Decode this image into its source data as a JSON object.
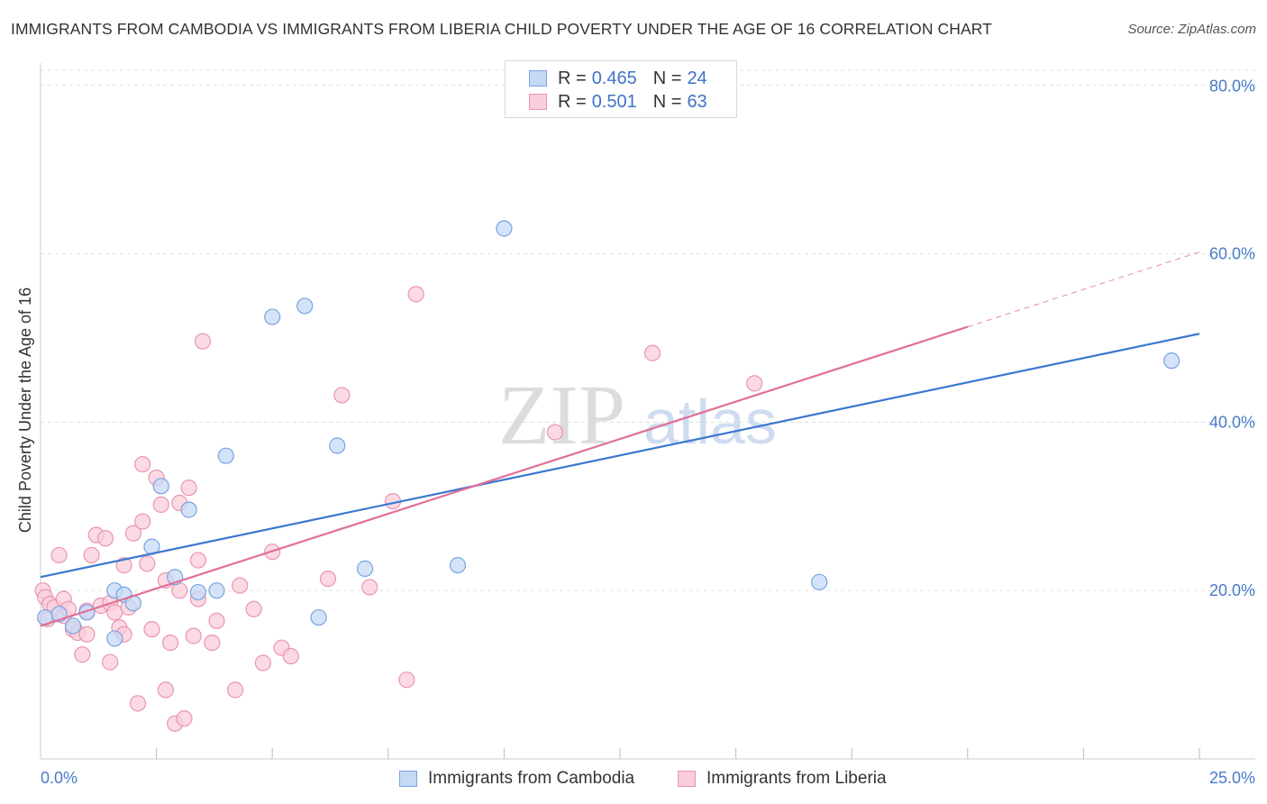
{
  "title": "IMMIGRANTS FROM CAMBODIA VS IMMIGRANTS FROM LIBERIA CHILD POVERTY UNDER THE AGE OF 16 CORRELATION CHART",
  "source": "Source: ZipAtlas.com",
  "watermark": {
    "zip": "ZIP",
    "atlas": "atlas"
  },
  "legend": {
    "cambodia": {
      "r_label": "R =",
      "r_value": "0.465",
      "n_label": "N =",
      "n_value": "24"
    },
    "liberia": {
      "r_label": "R =",
      "r_value": "0.501",
      "n_label": "N =",
      "n_value": "63"
    }
  },
  "colors": {
    "cambodia_fill": "#c5d9f5",
    "cambodia_stroke": "#7aa3e0",
    "cambodia_line": "#3a78d0",
    "liberia_fill": "#f9cdda",
    "liberia_stroke": "#e995b0",
    "liberia_line": "#e07098",
    "tick_text": "#4a7bc8",
    "grid": "#dddddd"
  },
  "chart_data": {
    "type": "scatter",
    "title": "IMMIGRANTS FROM CAMBODIA VS IMMIGRANTS FROM LIBERIA CHILD POVERTY UNDER THE AGE OF 16 CORRELATION CHART",
    "xlabel": "",
    "ylabel": "Child Poverty Under the Age of 16",
    "xlim": [
      0,
      25
    ],
    "ylim": [
      0,
      82
    ],
    "y_ticks": [
      20,
      40,
      60,
      80
    ],
    "y_tick_labels": [
      "20.0%",
      "40.0%",
      "60.0%",
      "80.0%"
    ],
    "x_tick_labels": {
      "min": "0.0%",
      "max": "25.0%"
    },
    "series": [
      {
        "name": "Immigrants from Cambodia",
        "trend": {
          "x0": 0,
          "y0": 21.6,
          "x1": 25,
          "y1": 50.5,
          "dashed_from": null
        },
        "points": [
          [
            0.1,
            16.8
          ],
          [
            0.4,
            17.2
          ],
          [
            0.7,
            15.8
          ],
          [
            1.0,
            17.4
          ],
          [
            1.6,
            20.0
          ],
          [
            1.6,
            14.3
          ],
          [
            1.8,
            19.5
          ],
          [
            2.0,
            18.5
          ],
          [
            2.4,
            25.2
          ],
          [
            2.6,
            32.4
          ],
          [
            2.9,
            21.6
          ],
          [
            3.2,
            29.6
          ],
          [
            3.4,
            19.8
          ],
          [
            3.8,
            20.0
          ],
          [
            4.0,
            36.0
          ],
          [
            5.0,
            52.5
          ],
          [
            5.7,
            53.8
          ],
          [
            6.0,
            16.8
          ],
          [
            6.4,
            37.2
          ],
          [
            7.0,
            22.6
          ],
          [
            9.0,
            23.0
          ],
          [
            10.0,
            63.0
          ],
          [
            16.8,
            21.0
          ],
          [
            24.4,
            47.3
          ]
        ]
      },
      {
        "name": "Immigrants from Liberia",
        "trend": {
          "x0": 0,
          "y0": 15.8,
          "x1": 25,
          "y1": 60.2,
          "dashed_from": 20
        },
        "points": [
          [
            0.05,
            20.0
          ],
          [
            0.1,
            19.2
          ],
          [
            0.2,
            18.4
          ],
          [
            0.3,
            18.0
          ],
          [
            0.4,
            24.2
          ],
          [
            0.5,
            17.0
          ],
          [
            0.5,
            19.0
          ],
          [
            0.6,
            17.8
          ],
          [
            0.7,
            15.4
          ],
          [
            0.8,
            15.0
          ],
          [
            0.9,
            12.4
          ],
          [
            1.0,
            17.6
          ],
          [
            1.0,
            14.8
          ],
          [
            1.1,
            24.2
          ],
          [
            1.2,
            26.6
          ],
          [
            1.3,
            18.2
          ],
          [
            1.4,
            26.2
          ],
          [
            1.5,
            18.5
          ],
          [
            1.5,
            11.5
          ],
          [
            1.6,
            17.4
          ],
          [
            1.7,
            15.6
          ],
          [
            1.8,
            14.8
          ],
          [
            1.8,
            23.0
          ],
          [
            1.9,
            18.0
          ],
          [
            2.0,
            26.8
          ],
          [
            2.1,
            6.6
          ],
          [
            2.2,
            35.0
          ],
          [
            2.2,
            28.2
          ],
          [
            2.3,
            23.2
          ],
          [
            2.4,
            15.4
          ],
          [
            2.5,
            33.4
          ],
          [
            2.6,
            30.2
          ],
          [
            2.7,
            21.2
          ],
          [
            2.7,
            8.2
          ],
          [
            2.8,
            13.8
          ],
          [
            2.9,
            4.2
          ],
          [
            3.0,
            20.0
          ],
          [
            3.0,
            30.4
          ],
          [
            3.1,
            4.8
          ],
          [
            3.2,
            32.2
          ],
          [
            3.3,
            14.6
          ],
          [
            3.4,
            23.6
          ],
          [
            3.4,
            19.0
          ],
          [
            3.5,
            49.6
          ],
          [
            3.7,
            13.8
          ],
          [
            3.8,
            16.4
          ],
          [
            4.2,
            8.2
          ],
          [
            4.3,
            20.6
          ],
          [
            4.6,
            17.8
          ],
          [
            4.8,
            11.4
          ],
          [
            5.0,
            24.6
          ],
          [
            5.2,
            13.2
          ],
          [
            5.4,
            12.2
          ],
          [
            6.2,
            21.4
          ],
          [
            6.5,
            43.2
          ],
          [
            7.1,
            20.4
          ],
          [
            7.6,
            30.6
          ],
          [
            7.9,
            9.4
          ],
          [
            8.1,
            55.2
          ],
          [
            11.1,
            38.8
          ],
          [
            13.2,
            48.2
          ],
          [
            15.4,
            44.6
          ],
          [
            0.15,
            16.6
          ]
        ]
      }
    ]
  },
  "bottom_legend": {
    "cambodia": "Immigrants from Cambodia",
    "liberia": "Immigrants from Liberia"
  }
}
